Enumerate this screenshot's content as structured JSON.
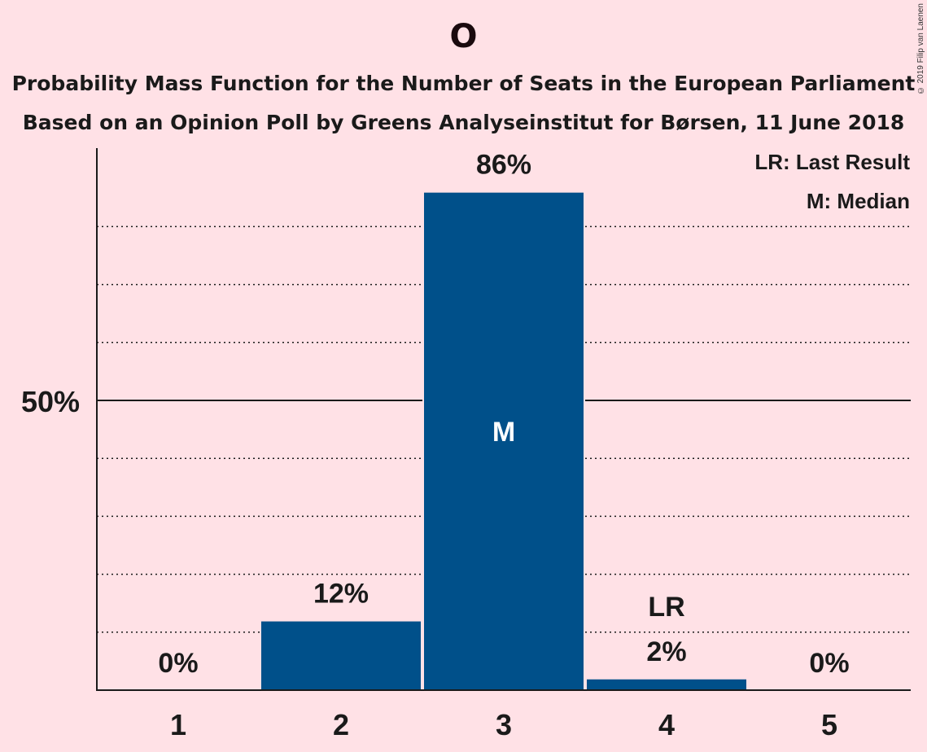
{
  "header": {
    "title": "O",
    "subtitle_1": "Probability Mass Function for the Number of Seats in the European Parliament",
    "subtitle_2": "Based on an Opinion Poll by Greens Analyseinstitut for Børsen, 11 June 2018",
    "copyright": "© 2019 Filip van Laenen"
  },
  "legend": {
    "lr": "LR: Last Result",
    "median": "M: Median"
  },
  "colors": {
    "background": "#FFE1E6",
    "bar": "#00508A",
    "text": "#1a1a1a"
  },
  "chart_data": {
    "type": "bar",
    "categories": [
      "1",
      "2",
      "3",
      "4",
      "5"
    ],
    "values": [
      0,
      12,
      86,
      2,
      0
    ],
    "value_labels": [
      "0%",
      "12%",
      "86%",
      "2%",
      "0%"
    ],
    "ylim": [
      0,
      94
    ],
    "y_tick_major": 50,
    "y_tick_label": "50%",
    "gridlines_dotted": [
      10,
      20,
      30,
      40,
      60,
      70,
      80
    ],
    "median_category": "3",
    "median_marker": "M",
    "last_result_category": "4",
    "last_result_marker": "LR"
  }
}
